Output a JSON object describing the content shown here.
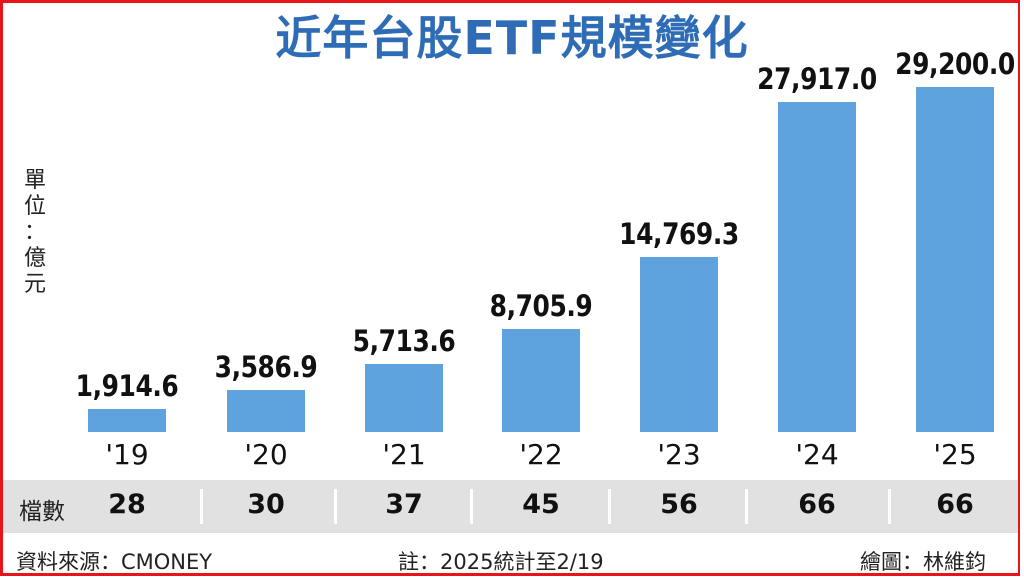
{
  "chart_data": {
    "type": "bar",
    "title": "近年台股ETF規模變化",
    "unit_label": "單位：億元",
    "xlabel": "",
    "ylabel": "單位：億元",
    "categories": [
      "'19",
      "'20",
      "'21",
      "'22",
      "'23",
      "'24",
      "'25"
    ],
    "values": [
      1914.6,
      3586.9,
      5713.6,
      8705.9,
      14769.3,
      27917.0,
      29200.0
    ],
    "value_labels": [
      "1,914.6",
      "3,586.9",
      "5,713.6",
      "8,705.9",
      "14,769.3",
      "27,917.0",
      "29,200.0"
    ],
    "grid": false,
    "legend": "none",
    "bar_color": "#5ea3de",
    "table_row": {
      "label": "檔數",
      "values": [
        28,
        30,
        37,
        45,
        56,
        66,
        66
      ]
    }
  },
  "unit_chars": [
    "單",
    "位",
    "：",
    "億",
    "元"
  ],
  "footer": {
    "source": "資料來源：CMONEY",
    "note": "註：2025統計至2/19",
    "credit": "繪圖：林維鈞"
  },
  "colors": {
    "title": "#2e6db5",
    "bar": "#5ea3de",
    "frame": "#e8141b",
    "table_bg": "#e1e1e1"
  }
}
